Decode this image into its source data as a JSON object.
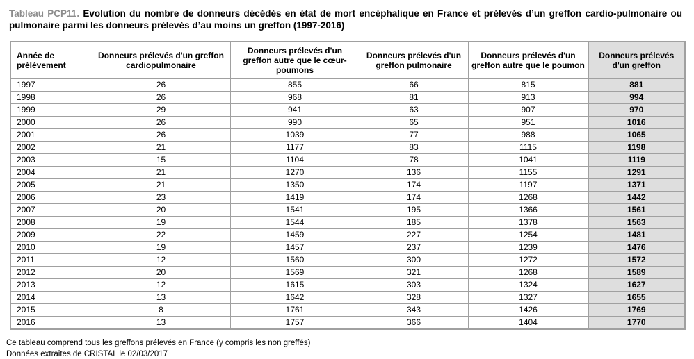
{
  "title": {
    "prefix": "Tableau PCP11.",
    "text": " Evolution du nombre de donneurs décédés en état de mort encéphalique en France et prélevés d’un greffon cardio-pulmonaire ou pulmonaire parmi les donneurs prélevés d’au moins un greffon (1997-2016)"
  },
  "table": {
    "columns": [
      "Année de prélèvement",
      "Donneurs prélevés d'un greffon cardiopulmonaire",
      "Donneurs prélevés d'un greffon autre que le cœur-poumons",
      "Donneurs prélevés d'un greffon pulmonaire",
      "Donneurs prélevés d'un greffon autre que le poumon",
      "Donneurs prélevés d'un greffon"
    ],
    "rows": [
      [
        "1997",
        "26",
        "855",
        "66",
        "815",
        "881"
      ],
      [
        "1998",
        "26",
        "968",
        "81",
        "913",
        "994"
      ],
      [
        "1999",
        "29",
        "941",
        "63",
        "907",
        "970"
      ],
      [
        "2000",
        "26",
        "990",
        "65",
        "951",
        "1016"
      ],
      [
        "2001",
        "26",
        "1039",
        "77",
        "988",
        "1065"
      ],
      [
        "2002",
        "21",
        "1177",
        "83",
        "1115",
        "1198"
      ],
      [
        "2003",
        "15",
        "1104",
        "78",
        "1041",
        "1119"
      ],
      [
        "2004",
        "21",
        "1270",
        "136",
        "1155",
        "1291"
      ],
      [
        "2005",
        "21",
        "1350",
        "174",
        "1197",
        "1371"
      ],
      [
        "2006",
        "23",
        "1419",
        "174",
        "1268",
        "1442"
      ],
      [
        "2007",
        "20",
        "1541",
        "195",
        "1366",
        "1561"
      ],
      [
        "2008",
        "19",
        "1544",
        "185",
        "1378",
        "1563"
      ],
      [
        "2009",
        "22",
        "1459",
        "227",
        "1254",
        "1481"
      ],
      [
        "2010",
        "19",
        "1457",
        "237",
        "1239",
        "1476"
      ],
      [
        "2011",
        "12",
        "1560",
        "300",
        "1272",
        "1572"
      ],
      [
        "2012",
        "20",
        "1569",
        "321",
        "1268",
        "1589"
      ],
      [
        "2013",
        "12",
        "1615",
        "303",
        "1324",
        "1627"
      ],
      [
        "2014",
        "13",
        "1642",
        "328",
        "1327",
        "1655"
      ],
      [
        "2015",
        "8",
        "1761",
        "343",
        "1426",
        "1769"
      ],
      [
        "2016",
        "13",
        "1757",
        "366",
        "1404",
        "1770"
      ]
    ]
  },
  "chart_data": {
    "type": "table",
    "title": "Tableau PCP11. Evolution du nombre de donneurs décédés en état de mort encéphalique en France et prélevés d’un greffon cardio-pulmonaire ou pulmonaire parmi les donneurs prélevés d’au moins un greffon (1997-2016)",
    "categories": [
      "1997",
      "1998",
      "1999",
      "2000",
      "2001",
      "2002",
      "2003",
      "2004",
      "2005",
      "2006",
      "2007",
      "2008",
      "2009",
      "2010",
      "2011",
      "2012",
      "2013",
      "2014",
      "2015",
      "2016"
    ],
    "series": [
      {
        "name": "Donneurs prélevés d'un greffon cardiopulmonaire",
        "values": [
          26,
          26,
          29,
          26,
          26,
          21,
          15,
          21,
          21,
          23,
          20,
          19,
          22,
          19,
          12,
          20,
          12,
          13,
          8,
          13
        ]
      },
      {
        "name": "Donneurs prélevés d'un greffon autre que le cœur-poumons",
        "values": [
          855,
          968,
          941,
          990,
          1039,
          1177,
          1104,
          1270,
          1350,
          1419,
          1541,
          1544,
          1459,
          1457,
          1560,
          1569,
          1615,
          1642,
          1761,
          1757
        ]
      },
      {
        "name": "Donneurs prélevés d'un greffon pulmonaire",
        "values": [
          66,
          81,
          63,
          65,
          77,
          83,
          78,
          136,
          174,
          174,
          195,
          185,
          227,
          237,
          300,
          321,
          303,
          328,
          343,
          366
        ]
      },
      {
        "name": "Donneurs prélevés d'un greffon autre que le poumon",
        "values": [
          815,
          913,
          907,
          951,
          988,
          1115,
          1041,
          1155,
          1197,
          1268,
          1366,
          1378,
          1254,
          1239,
          1272,
          1268,
          1324,
          1327,
          1426,
          1404
        ]
      },
      {
        "name": "Donneurs prélevés d'un greffon",
        "values": [
          881,
          994,
          970,
          1016,
          1065,
          1198,
          1119,
          1291,
          1371,
          1442,
          1561,
          1563,
          1481,
          1476,
          1572,
          1589,
          1627,
          1655,
          1769,
          1770
        ]
      }
    ]
  },
  "footnotes": [
    "Ce tableau comprend tous les greffons prélevés en France (y compris les non greffés)",
    "Données extraites de CRISTAL le 02/03/2017"
  ],
  "colors": {
    "title_prefix": "#8c8c8c",
    "highlight_column_bg": "#dedede",
    "table_border": "#a0a0a0",
    "text": "#000000"
  }
}
